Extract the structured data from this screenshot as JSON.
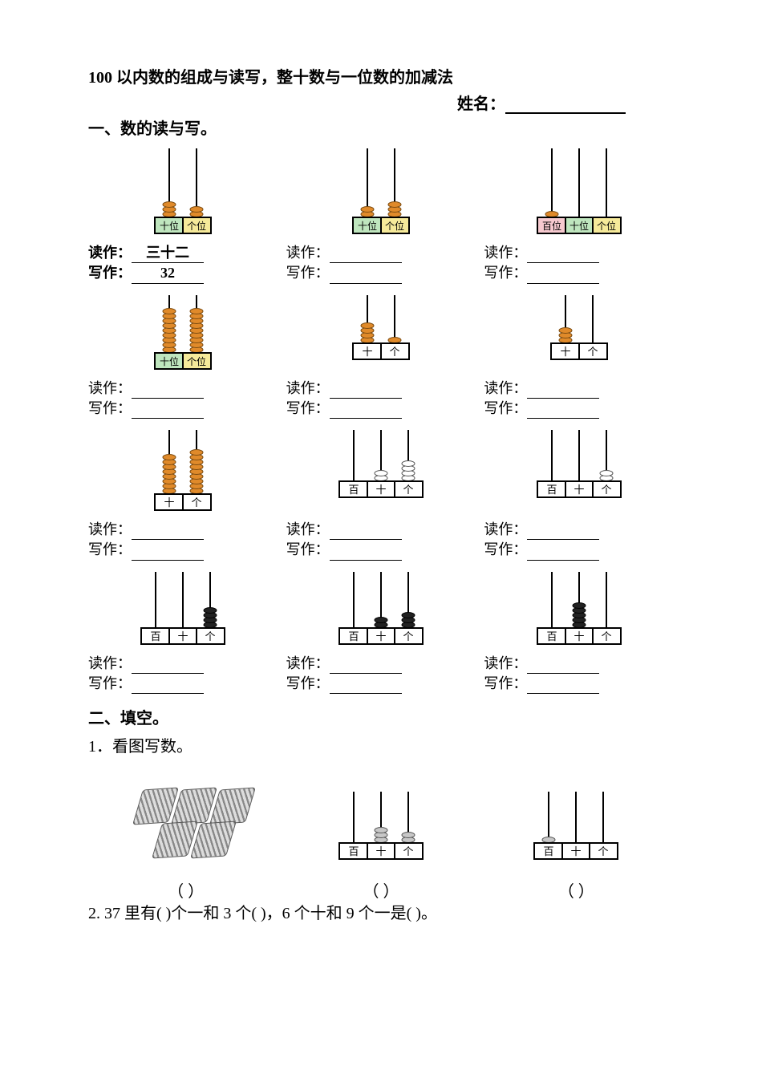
{
  "title": "100 以内数的组成与读写，整十数与一位数的加减法",
  "name_label": "姓名：",
  "section1_heading": "一、数的读与写。",
  "read_label": "读作：",
  "write_label": "写作：",
  "rows": [
    {
      "imgs": [
        {
          "type": "abacus",
          "label_style": "col-2",
          "places": [
            "十位",
            "个位"
          ],
          "beads": [
            3,
            2
          ],
          "bead_color": "orange",
          "rod_h": 86
        },
        {
          "type": "abacus",
          "label_style": "col-2",
          "places": [
            "十位",
            "个位"
          ],
          "beads": [
            2,
            3
          ],
          "bead_color": "orange",
          "rod_h": 86
        },
        {
          "type": "abacus",
          "label_style": "col-h",
          "places": [
            "百位",
            "十位",
            "个位"
          ],
          "beads": [
            1,
            0,
            0
          ],
          "bead_color": "orange",
          "rod_h": 86
        }
      ],
      "rw": [
        {
          "read": "三十二",
          "write": "32",
          "bold": true
        },
        {
          "read": "",
          "write": ""
        },
        {
          "read": "",
          "write": ""
        }
      ]
    },
    {
      "imgs": [
        {
          "type": "abacus",
          "label_style": "col-2",
          "places": [
            "十位",
            "个位"
          ],
          "beads": [
            9,
            9
          ],
          "bead_color": "orange",
          "rod_h": 72
        },
        {
          "type": "abacus",
          "label_style": "plain",
          "places": [
            "十",
            "个"
          ],
          "beads": [
            4,
            1
          ],
          "bead_color": "orange",
          "rod_h": 60
        },
        {
          "type": "abacus",
          "label_style": "plain",
          "places": [
            "十",
            "个"
          ],
          "beads": [
            3,
            0
          ],
          "bead_color": "orange",
          "rod_h": 60
        }
      ],
      "rw": [
        {
          "read": "",
          "write": ""
        },
        {
          "read": "",
          "write": ""
        },
        {
          "read": "",
          "write": ""
        }
      ]
    },
    {
      "imgs": [
        {
          "type": "abacus",
          "label_style": "plain",
          "places": [
            "十",
            "个"
          ],
          "beads": [
            8,
            9
          ],
          "bead_color": "orange",
          "rod_h": 80
        },
        {
          "type": "abacus",
          "label_style": "plain",
          "places": [
            "百",
            "十",
            "个"
          ],
          "beads": [
            0,
            2,
            4
          ],
          "bead_color": "white",
          "rod_h": 64
        },
        {
          "type": "abacus",
          "label_style": "plain",
          "places": [
            "百",
            "十",
            "个"
          ],
          "beads": [
            0,
            0,
            2
          ],
          "bead_color": "white",
          "rod_h": 64
        }
      ],
      "rw": [
        {
          "read": "",
          "write": ""
        },
        {
          "read": "",
          "write": ""
        },
        {
          "read": "",
          "write": ""
        }
      ]
    },
    {
      "imgs": [
        {
          "type": "abacus",
          "label_style": "plain",
          "places": [
            "百",
            "十",
            "个"
          ],
          "beads": [
            0,
            0,
            4
          ],
          "bead_color": "black",
          "rod_h": 70
        },
        {
          "type": "abacus",
          "label_style": "plain",
          "places": [
            "百",
            "十",
            "个"
          ],
          "beads": [
            0,
            2,
            3
          ],
          "bead_color": "black",
          "rod_h": 70
        },
        {
          "type": "abacus",
          "label_style": "plain",
          "places": [
            "百",
            "十",
            "个"
          ],
          "beads": [
            0,
            5,
            0
          ],
          "bead_color": "black",
          "rod_h": 70
        }
      ],
      "rw": [
        {
          "read": "",
          "write": ""
        },
        {
          "read": "",
          "write": ""
        },
        {
          "read": "",
          "write": ""
        }
      ]
    }
  ],
  "section2_heading": "二、填空。",
  "q1_label": "1．看图写数。",
  "q1_figs": [
    {
      "type": "bundles",
      "count": 5
    },
    {
      "type": "abacus",
      "label_style": "plain",
      "places": [
        "百",
        "十",
        "个"
      ],
      "beads": [
        0,
        3,
        2
      ],
      "bead_color": "gray",
      "rod_h": 64
    },
    {
      "type": "abacus",
      "label_style": "plain",
      "places": [
        "百",
        "十",
        "个"
      ],
      "beads": [
        1,
        0,
        0
      ],
      "bead_color": "gray",
      "rod_h": 64
    }
  ],
  "q1_paren": "（          ）",
  "q2_text": "2. 37 里有(      )个一和 3 个(      )，6 个十和 9 个一是(      )。"
}
